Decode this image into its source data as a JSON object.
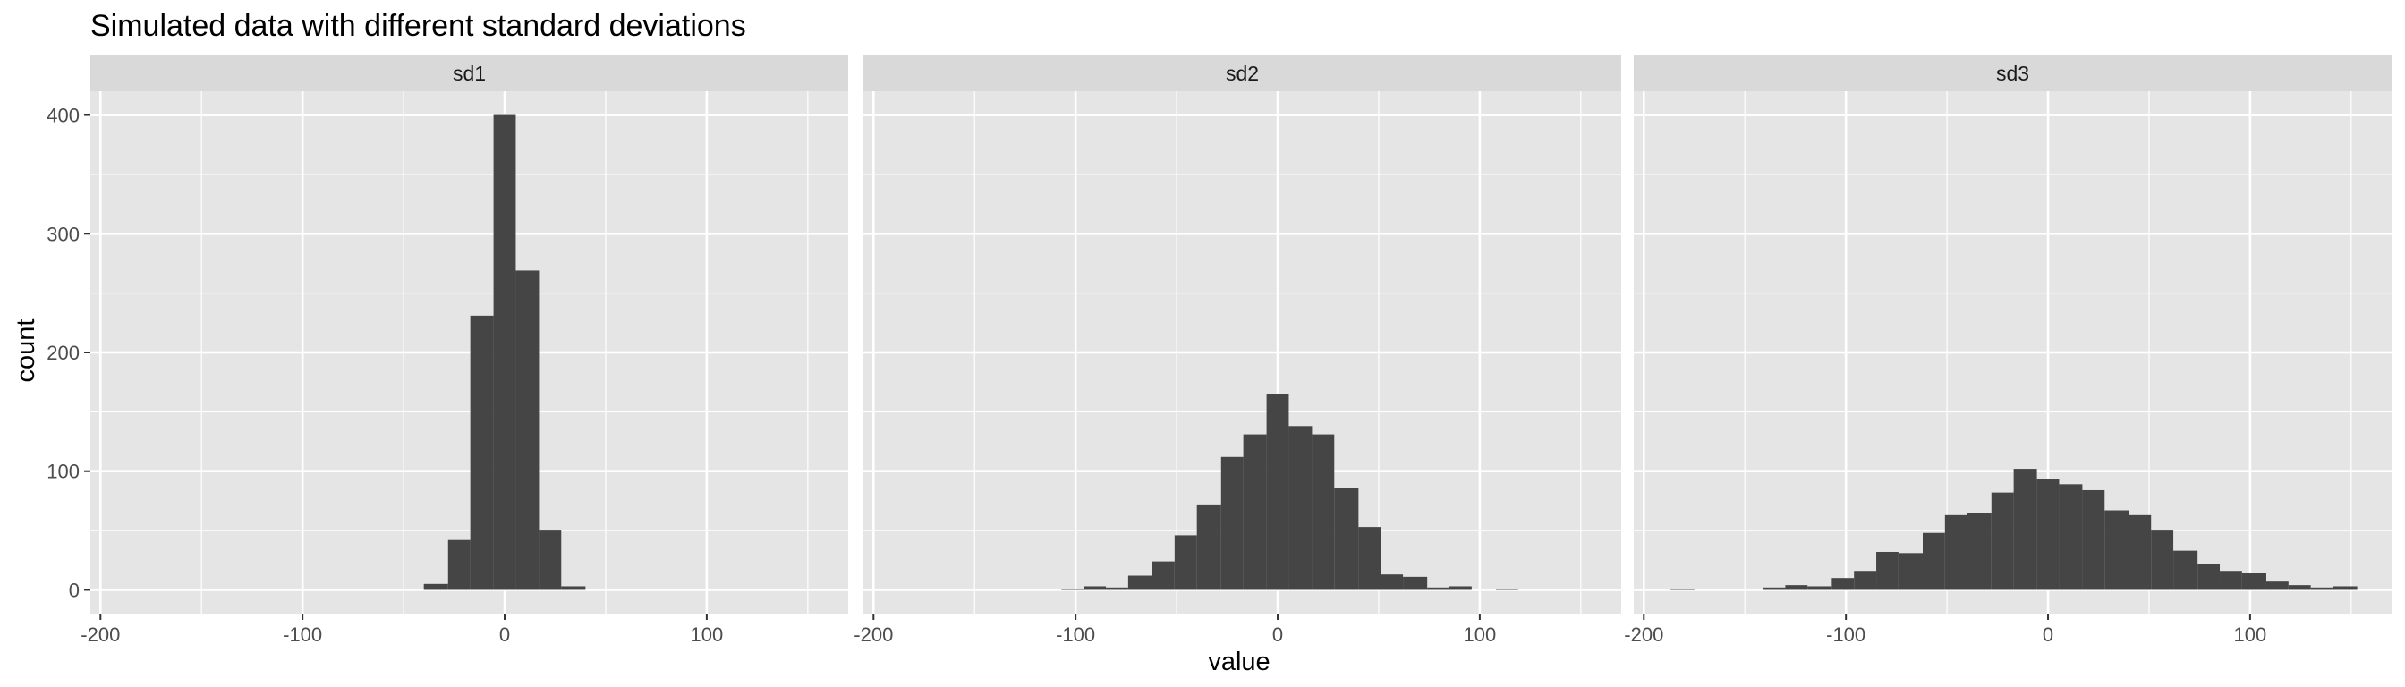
{
  "chart_data": {
    "type": "histogram",
    "title": "Simulated data with different standard deviations",
    "xlabel": "value",
    "ylabel": "count",
    "xlim": [
      -205,
      170
    ],
    "ylim": [
      -20,
      420
    ],
    "x_ticks": [
      -200,
      -100,
      0,
      100
    ],
    "y_ticks": [
      0,
      100,
      200,
      300,
      400
    ],
    "x_minor": [
      -150,
      -50,
      50,
      150
    ],
    "y_minor": [
      50,
      150,
      250,
      350
    ],
    "grid": true,
    "bar_color": "#454545",
    "panel_bg": "#e5e5e5",
    "strip_bg": "#d9d9d9",
    "grid_color": "#ffffff",
    "panels": [
      {
        "label": "sd1",
        "bins": [
          {
            "x0": -40,
            "x1": -28,
            "count": 5
          },
          {
            "x0": -28,
            "x1": -17,
            "count": 42
          },
          {
            "x0": -17,
            "x1": -5.5,
            "count": 231
          },
          {
            "x0": -5.5,
            "x1": 5.5,
            "count": 400
          },
          {
            "x0": 5.5,
            "x1": 17,
            "count": 269
          },
          {
            "x0": 17,
            "x1": 28,
            "count": 50
          },
          {
            "x0": 28,
            "x1": 40,
            "count": 3
          }
        ]
      },
      {
        "label": "sd2",
        "bins": [
          {
            "x0": -107,
            "x1": -96,
            "count": 1
          },
          {
            "x0": -96,
            "x1": -85,
            "count": 3
          },
          {
            "x0": -85,
            "x1": -74,
            "count": 2
          },
          {
            "x0": -74,
            "x1": -62,
            "count": 12
          },
          {
            "x0": -62,
            "x1": -51,
            "count": 24
          },
          {
            "x0": -51,
            "x1": -40,
            "count": 46
          },
          {
            "x0": -40,
            "x1": -28,
            "count": 72
          },
          {
            "x0": -28,
            "x1": -17,
            "count": 112
          },
          {
            "x0": -17,
            "x1": -5.5,
            "count": 131
          },
          {
            "x0": -5.5,
            "x1": 5.5,
            "count": 165
          },
          {
            "x0": 5.5,
            "x1": 17,
            "count": 138
          },
          {
            "x0": 17,
            "x1": 28,
            "count": 131
          },
          {
            "x0": 28,
            "x1": 40,
            "count": 86
          },
          {
            "x0": 40,
            "x1": 51,
            "count": 53
          },
          {
            "x0": 51,
            "x1": 62,
            "count": 13
          },
          {
            "x0": 62,
            "x1": 74,
            "count": 11
          },
          {
            "x0": 74,
            "x1": 85,
            "count": 2
          },
          {
            "x0": 85,
            "x1": 96,
            "count": 3
          },
          {
            "x0": 108,
            "x1": 119,
            "count": 1
          }
        ]
      },
      {
        "label": "sd3",
        "bins": [
          {
            "x0": -187,
            "x1": -175,
            "count": 1
          },
          {
            "x0": -141,
            "x1": -130,
            "count": 2
          },
          {
            "x0": -130,
            "x1": -119,
            "count": 4
          },
          {
            "x0": -119,
            "x1": -107,
            "count": 3
          },
          {
            "x0": -107,
            "x1": -96,
            "count": 10
          },
          {
            "x0": -96,
            "x1": -85,
            "count": 16
          },
          {
            "x0": -85,
            "x1": -74,
            "count": 32
          },
          {
            "x0": -74,
            "x1": -62,
            "count": 31
          },
          {
            "x0": -62,
            "x1": -51,
            "count": 48
          },
          {
            "x0": -51,
            "x1": -40,
            "count": 63
          },
          {
            "x0": -40,
            "x1": -28,
            "count": 65
          },
          {
            "x0": -28,
            "x1": -17,
            "count": 82
          },
          {
            "x0": -17,
            "x1": -5.5,
            "count": 102
          },
          {
            "x0": -5.5,
            "x1": 5.5,
            "count": 93
          },
          {
            "x0": 5.5,
            "x1": 17,
            "count": 89
          },
          {
            "x0": 17,
            "x1": 28,
            "count": 84
          },
          {
            "x0": 28,
            "x1": 40,
            "count": 67
          },
          {
            "x0": 40,
            "x1": 51,
            "count": 63
          },
          {
            "x0": 51,
            "x1": 62,
            "count": 50
          },
          {
            "x0": 62,
            "x1": 74,
            "count": 33
          },
          {
            "x0": 74,
            "x1": 85,
            "count": 22
          },
          {
            "x0": 85,
            "x1": 96,
            "count": 16
          },
          {
            "x0": 96,
            "x1": 108,
            "count": 14
          },
          {
            "x0": 108,
            "x1": 119,
            "count": 7
          },
          {
            "x0": 119,
            "x1": 130,
            "count": 4
          },
          {
            "x0": 130,
            "x1": 141,
            "count": 2
          },
          {
            "x0": 141,
            "x1": 153,
            "count": 3
          }
        ]
      }
    ]
  }
}
